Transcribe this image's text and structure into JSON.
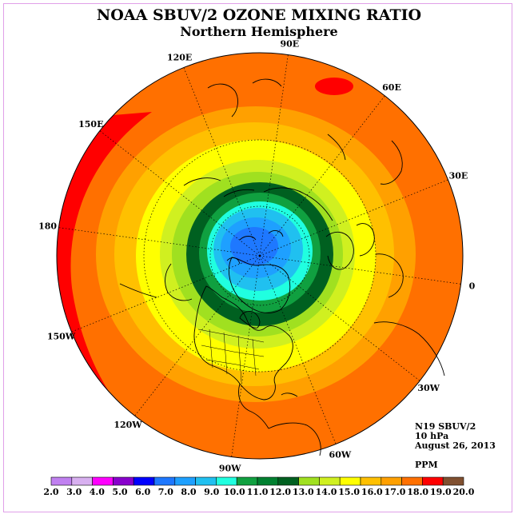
{
  "header": {
    "title": "NOAA SBUV/2 OZONE MIXING RATIO",
    "subtitle": "Northern Hemisphere"
  },
  "map": {
    "projection": "north-polar-stereographic",
    "longitude_labels": [
      {
        "label": "0",
        "lon": 0
      },
      {
        "label": "30E",
        "lon": 30
      },
      {
        "label": "60E",
        "lon": 60
      },
      {
        "label": "90E",
        "lon": 90
      },
      {
        "label": "120E",
        "lon": 120
      },
      {
        "label": "150E",
        "lon": 150
      },
      {
        "label": "180",
        "lon": 180
      },
      {
        "label": "150W",
        "lon": -150
      },
      {
        "label": "120W",
        "lon": -120
      },
      {
        "label": "90W",
        "lon": -90
      },
      {
        "label": "60W",
        "lon": -60
      },
      {
        "label": "30W",
        "lon": -30
      }
    ]
  },
  "info": {
    "instrument": "N19 SBUV/2",
    "level": "10 hPa",
    "date": "August 26, 2013",
    "units": "PPM"
  },
  "colorbar": {
    "ticks": [
      "2.0",
      "3.0",
      "4.0",
      "5.0",
      "6.0",
      "7.0",
      "8.0",
      "9.0",
      "10.0",
      "11.0",
      "12.0",
      "13.0",
      "14.0",
      "15.0",
      "16.0",
      "17.0",
      "18.0",
      "19.0",
      "20.0"
    ],
    "colors": [
      "#c080f0",
      "#d8b0f0",
      "#ff00ff",
      "#8800cc",
      "#0000ff",
      "#1e78ff",
      "#1ea0ff",
      "#20c0f0",
      "#20ffe0",
      "#10a040",
      "#008030",
      "#006020",
      "#a0e020",
      "#d0f020",
      "#ffff00",
      "#ffc000",
      "#ffa000",
      "#ff7000",
      "#ff0000",
      "#805030"
    ]
  }
}
